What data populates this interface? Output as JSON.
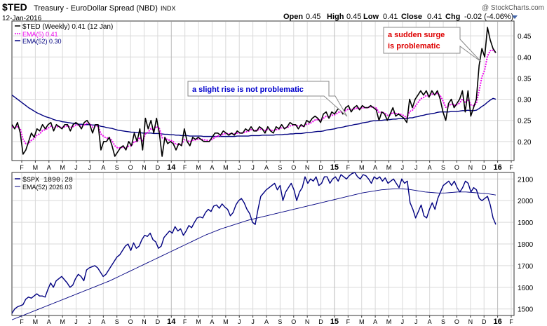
{
  "header": {
    "symbol": "$TED",
    "description": "Treasury - EuroDollar Spread (NBD)",
    "exchange": "INDX",
    "date": "12-Jan-2016",
    "copyright": "@ StockCharts.com",
    "ohlc": {
      "open_label": "Open",
      "open": "0.45",
      "high_label": "High",
      "high": "0.45",
      "low_label": "Low",
      "low": "0.41",
      "close_label": "Close",
      "close": "0.41",
      "chg_label": "Chg",
      "chg": "-0.02 (-4.06%)"
    }
  },
  "colors": {
    "ted_line": "#000000",
    "ema5": "#ee00ee",
    "ema52": "#000080",
    "spx_line": "#000080",
    "annotation_blue": "#0000cc",
    "annotation_red": "#dd0000",
    "grid": "#d9d9d9"
  },
  "chart_data": [
    {
      "type": "line",
      "legend": [
        {
          "label": "$TED (Weekly) 0.41 (12 Jan)",
          "color": "#000000"
        },
        {
          "label": "EMA(5) 0.41",
          "color": "#ee00ee"
        },
        {
          "label": "EMA(52) 0.30",
          "color": "#000080"
        }
      ],
      "legend_position": "top-left",
      "ylim": [
        0.155,
        0.485
      ],
      "yticks": [
        "0.20",
        "0.25",
        "0.30",
        "0.35",
        "0.40",
        "0.45"
      ],
      "grid": true,
      "x_axis_labels": [
        "F",
        "M",
        "A",
        "M",
        "J",
        "J",
        "A",
        "S",
        "O",
        "N",
        "D",
        "14",
        "F",
        "M",
        "A",
        "M",
        "J",
        "J",
        "A",
        "S",
        "O",
        "N",
        "D",
        "15",
        "F",
        "M",
        "A",
        "M",
        "J",
        "J",
        "A",
        "S",
        "O",
        "N",
        "D",
        "16",
        "F"
      ],
      "annotations": [
        {
          "text": "a slight rise is not problematic",
          "color": "#0000cc"
        },
        {
          "text_lines": [
            "a sudden surge",
            "is problematic"
          ],
          "color": "#dd0000"
        }
      ],
      "series": [
        {
          "name": "$TED (Weekly)",
          "values": [
            0.24,
            0.23,
            0.245,
            0.22,
            0.17,
            0.18,
            0.2,
            0.22,
            0.21,
            0.23,
            0.225,
            0.24,
            0.23,
            0.24,
            0.245,
            0.225,
            0.24,
            0.235,
            0.23,
            0.24,
            0.24,
            0.225,
            0.24,
            0.245,
            0.24,
            0.23,
            0.245,
            0.25,
            0.24,
            0.22,
            0.24,
            0.24,
            0.18,
            0.2,
            0.2,
            0.21,
            0.19,
            0.165,
            0.175,
            0.185,
            0.19,
            0.18,
            0.2,
            0.19,
            0.22,
            0.2,
            0.23,
            0.18,
            0.255,
            0.23,
            0.25,
            0.22,
            0.255,
            0.22,
            0.165,
            0.21,
            0.195,
            0.2,
            0.195,
            0.18,
            0.195,
            0.19,
            0.23,
            0.2,
            0.19,
            0.21,
            0.205,
            0.21,
            0.205,
            0.2,
            0.2,
            0.2,
            0.21,
            0.22,
            0.22,
            0.215,
            0.225,
            0.22,
            0.215,
            0.22,
            0.215,
            0.225,
            0.22,
            0.22,
            0.23,
            0.225,
            0.235,
            0.225,
            0.225,
            0.235,
            0.23,
            0.22,
            0.235,
            0.225,
            0.22,
            0.235,
            0.23,
            0.24,
            0.23,
            0.235,
            0.245,
            0.24,
            0.24,
            0.23,
            0.24,
            0.235,
            0.25,
            0.245,
            0.255,
            0.26,
            0.255,
            0.245,
            0.265,
            0.27,
            0.255,
            0.27,
            0.265,
            0.275,
            0.28,
            0.265,
            0.28,
            0.285,
            0.27,
            0.28,
            0.285,
            0.275,
            0.285,
            0.28,
            0.28,
            0.285,
            0.28,
            0.275,
            0.25,
            0.27,
            0.265,
            0.25,
            0.265,
            0.28,
            0.26,
            0.265,
            0.26,
            0.255,
            0.245,
            0.3,
            0.28,
            0.3,
            0.31,
            0.32,
            0.31,
            0.32,
            0.305,
            0.32,
            0.31,
            0.32,
            0.3,
            0.27,
            0.25,
            0.29,
            0.3,
            0.28,
            0.29,
            0.3,
            0.32,
            0.27,
            0.32,
            0.26,
            0.28,
            0.3,
            0.38,
            0.42,
            0.4,
            0.47,
            0.44,
            0.42,
            0.41
          ]
        },
        {
          "name": "EMA(5)",
          "values": [
            0.235,
            0.232,
            0.235,
            0.23,
            0.205,
            0.195,
            0.195,
            0.203,
            0.207,
            0.215,
            0.218,
            0.226,
            0.228,
            0.232,
            0.236,
            0.232,
            0.235,
            0.235,
            0.233,
            0.235,
            0.237,
            0.233,
            0.235,
            0.239,
            0.239,
            0.236,
            0.239,
            0.243,
            0.242,
            0.234,
            0.236,
            0.237,
            0.218,
            0.212,
            0.208,
            0.209,
            0.202,
            0.19,
            0.185,
            0.185,
            0.187,
            0.184,
            0.189,
            0.19,
            0.2,
            0.2,
            0.21,
            0.2,
            0.218,
            0.222,
            0.231,
            0.227,
            0.236,
            0.231,
            0.209,
            0.209,
            0.204,
            0.203,
            0.2,
            0.193,
            0.194,
            0.193,
            0.205,
            0.203,
            0.199,
            0.203,
            0.204,
            0.206,
            0.206,
            0.204,
            0.203,
            0.202,
            0.205,
            0.21,
            0.213,
            0.214,
            0.218,
            0.219,
            0.218,
            0.219,
            0.218,
            0.22,
            0.22,
            0.22,
            0.223,
            0.224,
            0.228,
            0.227,
            0.226,
            0.229,
            0.229,
            0.226,
            0.229,
            0.228,
            0.225,
            0.228,
            0.229,
            0.233,
            0.232,
            0.233,
            0.237,
            0.238,
            0.239,
            0.236,
            0.237,
            0.236,
            0.241,
            0.242,
            0.246,
            0.251,
            0.252,
            0.25,
            0.255,
            0.26,
            0.258,
            0.262,
            0.263,
            0.267,
            0.271,
            0.269,
            0.273,
            0.277,
            0.275,
            0.277,
            0.279,
            0.278,
            0.28,
            0.28,
            0.28,
            0.282,
            0.281,
            0.279,
            0.269,
            0.269,
            0.268,
            0.262,
            0.263,
            0.269,
            0.266,
            0.266,
            0.264,
            0.261,
            0.256,
            0.271,
            0.274,
            0.283,
            0.292,
            0.301,
            0.304,
            0.309,
            0.308,
            0.312,
            0.311,
            0.314,
            0.309,
            0.296,
            0.281,
            0.284,
            0.289,
            0.286,
            0.287,
            0.291,
            0.301,
            0.291,
            0.3,
            0.287,
            0.285,
            0.29,
            0.32,
            0.353,
            0.369,
            0.402,
            0.415,
            0.416,
            0.41
          ]
        },
        {
          "name": "EMA(52)",
          "values": [
            0.31,
            0.305,
            0.3,
            0.295,
            0.29,
            0.285,
            0.28,
            0.276,
            0.272,
            0.268,
            0.265,
            0.262,
            0.259,
            0.257,
            0.255,
            0.252,
            0.25,
            0.249,
            0.247,
            0.246,
            0.245,
            0.244,
            0.243,
            0.242,
            0.241,
            0.241,
            0.24,
            0.24,
            0.24,
            0.239,
            0.239,
            0.238,
            0.236,
            0.235,
            0.233,
            0.232,
            0.231,
            0.229,
            0.227,
            0.226,
            0.225,
            0.224,
            0.223,
            0.222,
            0.222,
            0.221,
            0.221,
            0.22,
            0.22,
            0.22,
            0.22,
            0.219,
            0.219,
            0.219,
            0.218,
            0.217,
            0.217,
            0.216,
            0.216,
            0.215,
            0.215,
            0.214,
            0.214,
            0.214,
            0.213,
            0.213,
            0.213,
            0.213,
            0.213,
            0.212,
            0.212,
            0.212,
            0.212,
            0.212,
            0.212,
            0.212,
            0.212,
            0.212,
            0.212,
            0.212,
            0.212,
            0.213,
            0.213,
            0.213,
            0.213,
            0.213,
            0.214,
            0.214,
            0.214,
            0.214,
            0.215,
            0.215,
            0.215,
            0.215,
            0.215,
            0.216,
            0.216,
            0.216,
            0.217,
            0.217,
            0.218,
            0.218,
            0.219,
            0.219,
            0.219,
            0.22,
            0.221,
            0.221,
            0.222,
            0.223,
            0.224,
            0.224,
            0.225,
            0.227,
            0.228,
            0.229,
            0.23,
            0.232,
            0.233,
            0.234,
            0.236,
            0.237,
            0.238,
            0.24,
            0.241,
            0.242,
            0.244,
            0.245,
            0.246,
            0.248,
            0.249,
            0.249,
            0.25,
            0.25,
            0.251,
            0.251,
            0.252,
            0.253,
            0.253,
            0.254,
            0.254,
            0.254,
            0.254,
            0.256,
            0.256,
            0.258,
            0.259,
            0.261,
            0.262,
            0.264,
            0.265,
            0.266,
            0.267,
            0.269,
            0.27,
            0.27,
            0.27,
            0.27,
            0.271,
            0.271,
            0.271,
            0.272,
            0.273,
            0.273,
            0.274,
            0.273,
            0.273,
            0.274,
            0.278,
            0.283,
            0.287,
            0.293,
            0.298,
            0.302,
            0.3
          ]
        }
      ]
    },
    {
      "type": "line",
      "legend": [
        {
          "label": "$SPX 1890.28",
          "color": "#000080"
        },
        {
          "label": "EMA(52) 2026.03",
          "color": "#000080"
        }
      ],
      "legend_position": "top-left",
      "ylim": [
        1470,
        2130
      ],
      "yticks": [
        "1500",
        "1600",
        "1700",
        "1800",
        "1900",
        "2000",
        "2100"
      ],
      "grid": true,
      "x_axis_labels": [
        "F",
        "M",
        "A",
        "M",
        "J",
        "J",
        "A",
        "S",
        "O",
        "N",
        "D",
        "14",
        "F",
        "M",
        "A",
        "M",
        "J",
        "J",
        "A",
        "S",
        "O",
        "N",
        "D",
        "15",
        "F",
        "M",
        "A",
        "M",
        "J",
        "J",
        "A",
        "S",
        "O",
        "N",
        "D",
        "16",
        "F"
      ],
      "series": [
        {
          "name": "$SPX",
          "values": [
            1480,
            1500,
            1510,
            1515,
            1520,
            1545,
            1555,
            1550,
            1560,
            1570,
            1560,
            1560,
            1555,
            1590,
            1620,
            1600,
            1630,
            1640,
            1650,
            1635,
            1620,
            1600,
            1610,
            1640,
            1660,
            1650,
            1630,
            1680,
            1690,
            1695,
            1700,
            1690,
            1670,
            1650,
            1660,
            1680,
            1700,
            1720,
            1740,
            1750,
            1770,
            1790,
            1800,
            1770,
            1805,
            1780,
            1790,
            1820,
            1840,
            1835,
            1850,
            1820,
            1810,
            1780,
            1790,
            1830,
            1845,
            1860,
            1850,
            1880,
            1860,
            1870,
            1840,
            1860,
            1885,
            1875,
            1900,
            1920,
            1925,
            1920,
            1945,
            1960,
            1950,
            1975,
            1980,
            1965,
            1985,
            1970,
            1960,
            1930,
            1945,
            1980,
            2000,
            2010,
            1990,
            1960,
            1940,
            1900,
            1890,
            1960,
            2020,
            2035,
            2050,
            2060,
            2070,
            2080,
            2050,
            2070,
            2000,
            2040,
            2060,
            2080,
            2050,
            2000,
            2040,
            2060,
            2110,
            2080,
            2100,
            2090,
            2110,
            2070,
            2080,
            2110,
            2110,
            2080,
            2100,
            2110,
            2090,
            2120,
            2110,
            2100,
            2115,
            2125,
            2130,
            2110,
            2100,
            2120,
            2115,
            2100,
            2080,
            2110,
            2100,
            2110,
            2090,
            2105,
            2080,
            2090,
            2100,
            2080,
            2060,
            2100,
            2080,
            2090,
            1990,
            1960,
            1920,
            1950,
            1980,
            1930,
            1920,
            1960,
            1990,
            1960,
            2010,
            2040,
            2070,
            2080,
            2090,
            2070,
            2090,
            2060,
            2040,
            2060,
            2090,
            2080,
            2040,
            2060,
            2050,
            2010,
            2000,
            2010,
            2020,
            1980,
            1920,
            1890
          ]
        },
        {
          "name": "EMA(52)",
          "values": [
            1450,
            1455,
            1460,
            1465,
            1470,
            1475,
            1480,
            1485,
            1490,
            1495,
            1500,
            1505,
            1510,
            1515,
            1520,
            1525,
            1530,
            1535,
            1540,
            1545,
            1550,
            1555,
            1560,
            1565,
            1570,
            1575,
            1580,
            1585,
            1590,
            1595,
            1600,
            1605,
            1610,
            1615,
            1620,
            1625,
            1630,
            1636,
            1642,
            1648,
            1654,
            1660,
            1666,
            1672,
            1678,
            1684,
            1690,
            1696,
            1702,
            1708,
            1714,
            1720,
            1726,
            1732,
            1738,
            1744,
            1750,
            1756,
            1762,
            1768,
            1774,
            1780,
            1786,
            1792,
            1798,
            1804,
            1810,
            1816,
            1822,
            1828,
            1834,
            1840,
            1845,
            1850,
            1855,
            1860,
            1865,
            1870,
            1874,
            1878,
            1882,
            1886,
            1890,
            1894,
            1898,
            1902,
            1906,
            1910,
            1913,
            1916,
            1919,
            1922,
            1925,
            1928,
            1931,
            1934,
            1937,
            1940,
            1943,
            1946,
            1949,
            1952,
            1955,
            1958,
            1961,
            1964,
            1967,
            1970,
            1973,
            1976,
            1979,
            1982,
            1985,
            1988,
            1991,
            1994,
            1997,
            2000,
            2003,
            2006,
            2009,
            2012,
            2015,
            2018,
            2021,
            2024,
            2027,
            2030,
            2033,
            2036,
            2038,
            2040,
            2042,
            2044,
            2046,
            2048,
            2050,
            2051,
            2052,
            2053,
            2054,
            2055,
            2055,
            2055,
            2054,
            2053,
            2052,
            2050,
            2048,
            2046,
            2044,
            2042,
            2040,
            2039,
            2038,
            2037,
            2036,
            2035,
            2035,
            2035,
            2036,
            2037,
            2038,
            2039,
            2040,
            2040,
            2040,
            2040,
            2039,
            2038,
            2037,
            2036,
            2035,
            2034,
            2033,
            2032,
            2030,
            2028,
            2026
          ]
        }
      ]
    }
  ]
}
